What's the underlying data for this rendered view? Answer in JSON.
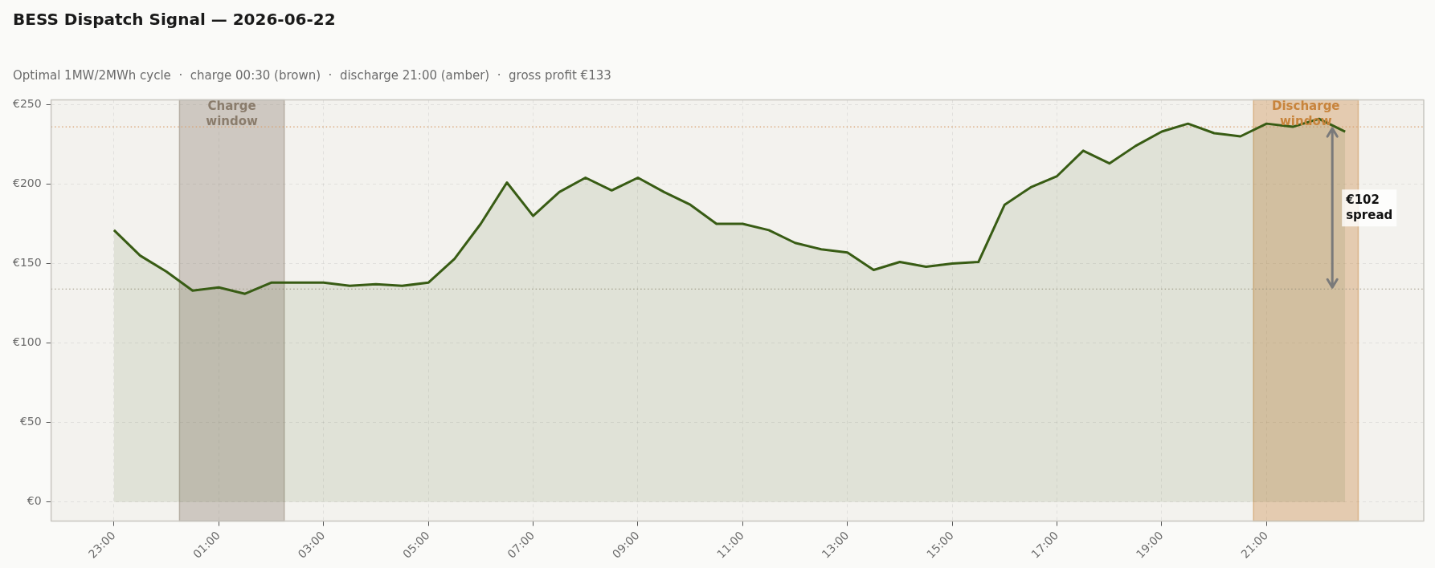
{
  "chart_data": {
    "type": "area",
    "title": "BESS Dispatch Signal — 2026-06-22",
    "subtitle": "Optimal 1MW/2MWh cycle  ·  charge 00:30 (brown)  ·  discharge 21:00 (amber)  ·  gross profit €133",
    "x": [
      "2026-06-21T23:00",
      "2026-06-21T23:30",
      "2026-06-22T00:00",
      "2026-06-22T00:30",
      "2026-06-22T01:00",
      "2026-06-22T01:30",
      "2026-06-22T02:00",
      "2026-06-22T02:30",
      "2026-06-22T03:00",
      "2026-06-22T03:30",
      "2026-06-22T04:00",
      "2026-06-22T04:30",
      "2026-06-22T05:00",
      "2026-06-22T05:30",
      "2026-06-22T06:00",
      "2026-06-22T06:30",
      "2026-06-22T07:00",
      "2026-06-22T07:30",
      "2026-06-22T08:00",
      "2026-06-22T08:30",
      "2026-06-22T09:00",
      "2026-06-22T09:30",
      "2026-06-22T10:00",
      "2026-06-22T10:30",
      "2026-06-22T11:00",
      "2026-06-22T11:30",
      "2026-06-22T12:00",
      "2026-06-22T12:30",
      "2026-06-22T13:00",
      "2026-06-22T13:30",
      "2026-06-22T14:00",
      "2026-06-22T14:30",
      "2026-06-22T15:00",
      "2026-06-22T15:30",
      "2026-06-22T16:00",
      "2026-06-22T16:30",
      "2026-06-22T17:00",
      "2026-06-22T17:30",
      "2026-06-22T18:00",
      "2026-06-22T18:30",
      "2026-06-22T19:00",
      "2026-06-22T19:30",
      "2026-06-22T20:00",
      "2026-06-22T20:30",
      "2026-06-22T21:00",
      "2026-06-22T21:30",
      "2026-06-22T22:00",
      "2026-06-22T22:30"
    ],
    "series": [
      {
        "color": "#385c14",
        "values": [
          171,
          155,
          145,
          133,
          135,
          131,
          138,
          138,
          138,
          136,
          137,
          136,
          138,
          153,
          175,
          201,
          180,
          195,
          204,
          196,
          204,
          195,
          187,
          175,
          175,
          171,
          163,
          159,
          157,
          146,
          151,
          148,
          150,
          151,
          187,
          198,
          205,
          221,
          213,
          224,
          233,
          238,
          232,
          230,
          238,
          236,
          241,
          233
        ]
      }
    ],
    "xlim": [
      "2026-06-21T21:48",
      "2026-06-23T00:00"
    ],
    "xticks": [
      {
        "value": "2026-06-21T23:00",
        "label": "23:00"
      },
      {
        "value": "2026-06-22T01:00",
        "label": "01:00"
      },
      {
        "value": "2026-06-22T03:00",
        "label": "03:00"
      },
      {
        "value": "2026-06-22T05:00",
        "label": "05:00"
      },
      {
        "value": "2026-06-22T07:00",
        "label": "07:00"
      },
      {
        "value": "2026-06-22T09:00",
        "label": "09:00"
      },
      {
        "value": "2026-06-22T11:00",
        "label": "11:00"
      },
      {
        "value": "2026-06-22T13:00",
        "label": "13:00"
      },
      {
        "value": "2026-06-22T15:00",
        "label": "15:00"
      },
      {
        "value": "2026-06-22T17:00",
        "label": "17:00"
      },
      {
        "value": "2026-06-22T19:00",
        "label": "19:00"
      },
      {
        "value": "2026-06-22T21:00",
        "label": "21:00"
      }
    ],
    "ylim": [
      -12,
      253
    ],
    "yticks": [
      {
        "value": 0,
        "label": "€0"
      },
      {
        "value": 50,
        "label": "€50"
      },
      {
        "value": 100,
        "label": "€100"
      },
      {
        "value": 150,
        "label": "€150"
      },
      {
        "value": 200,
        "label": "€200"
      },
      {
        "value": 250,
        "label": "€250"
      }
    ],
    "grid": true,
    "bands": [
      {
        "axis": "x",
        "from": "2026-06-22T00:15",
        "to": "2026-06-22T02:15",
        "label": "Charge\nwindow",
        "color": "#8a7c6c"
      },
      {
        "axis": "x",
        "from": "2026-06-22T20:45",
        "to": "2026-06-22T22:45",
        "label": "Discharge\nwindow",
        "color": "#c8843c"
      }
    ],
    "ref_lines": [
      {
        "axis": "y",
        "value": 134,
        "color": "#a09886",
        "line_style": "dotted"
      },
      {
        "axis": "y",
        "value": 236,
        "color": "#d9a070",
        "line_style": "dotted"
      }
    ],
    "annotations": [
      "€102\nspread"
    ]
  }
}
